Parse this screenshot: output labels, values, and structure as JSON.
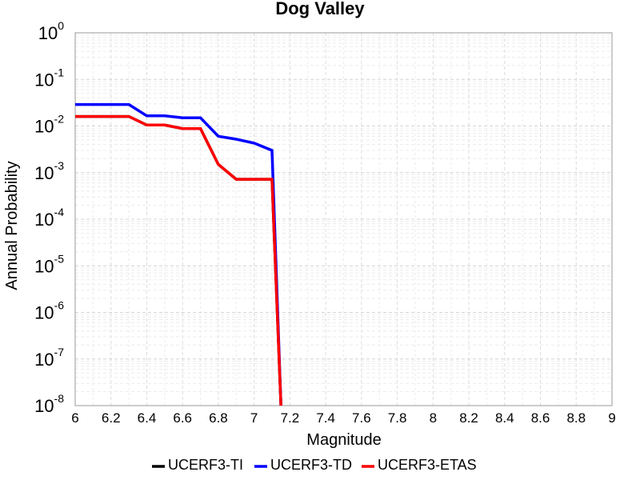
{
  "chart_data": {
    "type": "line",
    "title": "Dog Valley",
    "xlabel": "Magnitude",
    "ylabel": "Annual Probability",
    "xlim": [
      6,
      9
    ],
    "ylim": [
      1e-08,
      1
    ],
    "y_scale": "log",
    "x_ticks": [
      "6",
      "6.2",
      "6.4",
      "6.6",
      "6.8",
      "7",
      "7.2",
      "7.4",
      "7.6",
      "7.8",
      "8",
      "8.2",
      "8.4",
      "8.6",
      "8.8",
      "9"
    ],
    "y_tick_exponents": [
      "0",
      "-1",
      "-2",
      "-3",
      "-4",
      "-5",
      "-6",
      "-7",
      "-8"
    ],
    "y_tick_base": "10",
    "grid": true,
    "legend_position": "bottom",
    "series": [
      {
        "name": "UCERF3-TI",
        "color": "#000000",
        "x": [
          6.0,
          6.1,
          6.2,
          6.3,
          6.4,
          6.5,
          6.6,
          6.7,
          6.8,
          6.9,
          7.0,
          7.1,
          7.15
        ],
        "y": [
          0.016,
          0.016,
          0.016,
          0.016,
          0.0105,
          0.0105,
          0.0088,
          0.0088,
          0.0015,
          0.00072,
          0.00072,
          0.00072,
          1e-08
        ]
      },
      {
        "name": "UCERF3-TD",
        "color": "#0000ff",
        "x": [
          6.0,
          6.1,
          6.2,
          6.3,
          6.4,
          6.5,
          6.6,
          6.7,
          6.8,
          6.9,
          7.0,
          7.1,
          7.15
        ],
        "y": [
          0.029,
          0.029,
          0.029,
          0.029,
          0.0165,
          0.0165,
          0.015,
          0.015,
          0.006,
          0.0052,
          0.0043,
          0.003,
          1e-08
        ]
      },
      {
        "name": "UCERF3-ETAS",
        "color": "#ff0000",
        "x": [
          6.0,
          6.1,
          6.2,
          6.3,
          6.4,
          6.5,
          6.6,
          6.7,
          6.8,
          6.9,
          7.0,
          7.1,
          7.15
        ],
        "y": [
          0.016,
          0.016,
          0.016,
          0.016,
          0.0105,
          0.0105,
          0.0088,
          0.0088,
          0.0015,
          0.00072,
          0.00072,
          0.00072,
          1e-08
        ]
      }
    ]
  }
}
